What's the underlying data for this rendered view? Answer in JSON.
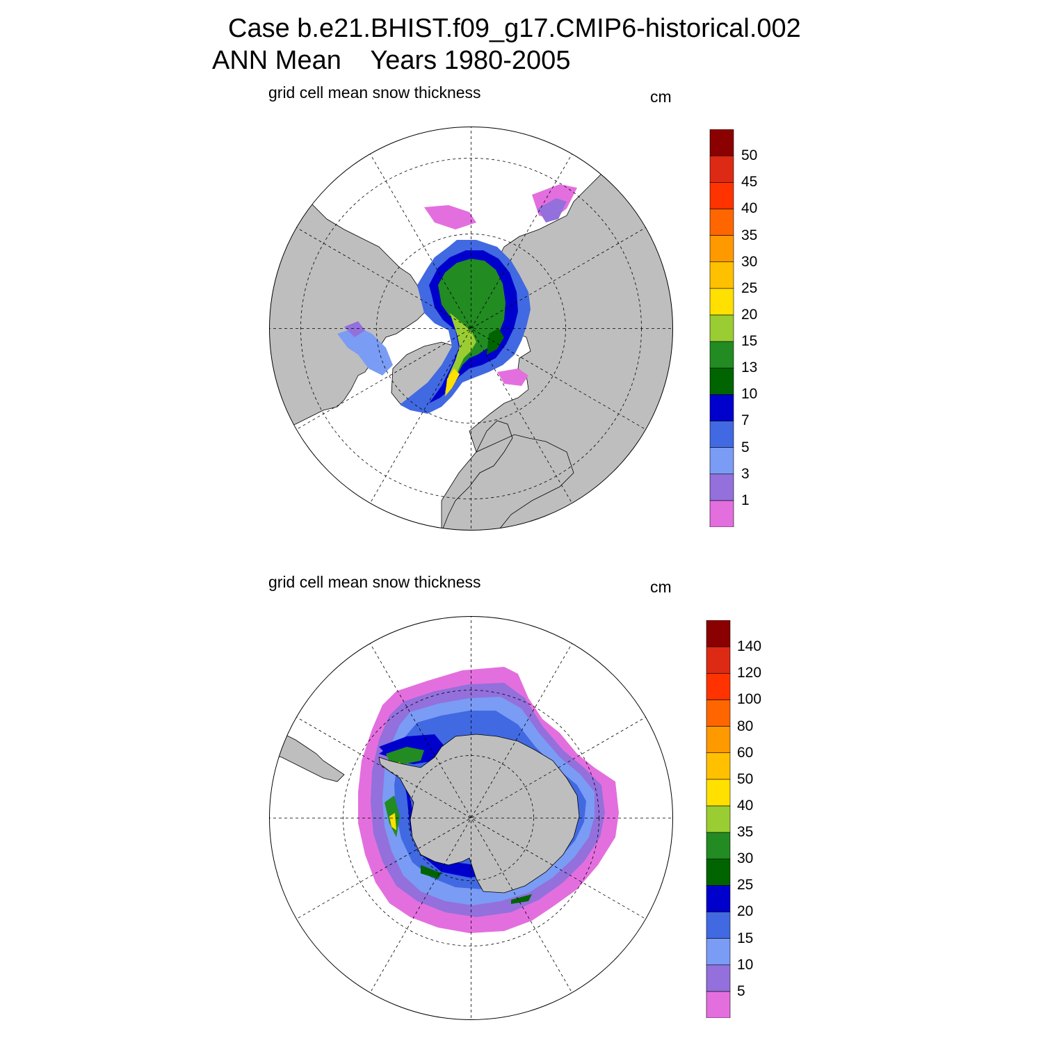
{
  "title": {
    "line1": "Case b.e21.BHIST.f09_g17.CMIP6-historical.002",
    "line2": "ANN Mean    Years 1980-2005"
  },
  "colors": {
    "land": "#bebebe",
    "ocean": "#ffffff",
    "levels": [
      "#e36fde",
      "#9370db",
      "#7a9cf4",
      "#4169e1",
      "#0000cd",
      "#006400",
      "#228b22",
      "#9acd32",
      "#ffe000",
      "#ffc000",
      "#ff9900",
      "#ff6600",
      "#ff3300",
      "#dd2a14",
      "#8b0000"
    ]
  },
  "north": {
    "subtitle": "grid cell mean snow thickness",
    "units": "cm",
    "colorbar_labels": [
      "1",
      "3",
      "5",
      "7",
      "10",
      "13",
      "15",
      "20",
      "25",
      "30",
      "35",
      "40",
      "45",
      "50"
    ]
  },
  "south": {
    "subtitle": "grid cell mean snow thickness",
    "units": "cm",
    "colorbar_labels": [
      "5",
      "10",
      "15",
      "20",
      "25",
      "30",
      "35",
      "40",
      "50",
      "60",
      "80",
      "100",
      "120",
      "140"
    ]
  }
}
